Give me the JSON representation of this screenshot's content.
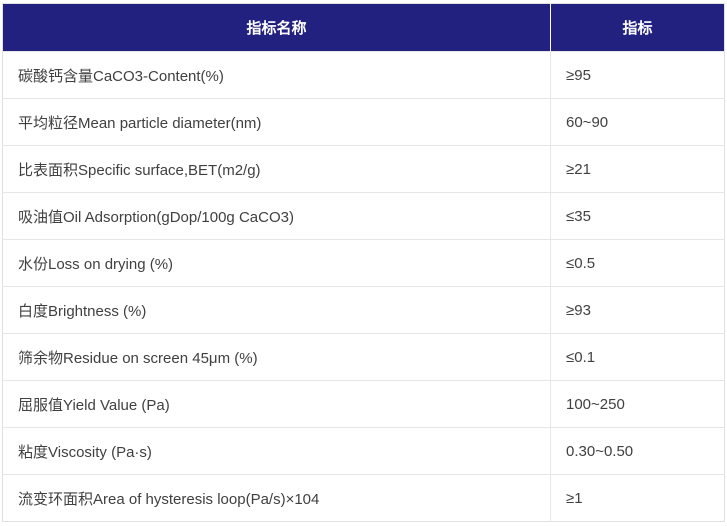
{
  "table": {
    "headers": [
      {
        "label": "指标名称"
      },
      {
        "label": "指标"
      }
    ],
    "rows": [
      {
        "name": "碳酸钙含量CaCO3-Content(%)",
        "value": "≥95"
      },
      {
        "name": "平均粒径Mean particle diameter(nm)",
        "value": "60~90"
      },
      {
        "name": "比表面积Specific surface,BET(m2/g)",
        "value": "≥21"
      },
      {
        "name": "吸油值Oil Adsorption(gDop/100g CaCO3)",
        "value": "≤35"
      },
      {
        "name": "水份Loss on drying (%)",
        "value": "≤0.5"
      },
      {
        "name": "白度Brightness (%)",
        "value": "≥93"
      },
      {
        "name": "筛余物Residue on screen 45μm (%)",
        "value": "≤0.1"
      },
      {
        "name": "屈服值Yield Value (Pa)",
        "value": "100~250"
      },
      {
        "name": "粘度Viscosity (Pa·s)",
        "value": "0.30~0.50"
      },
      {
        "name": "流变环面积Area of hysteresis loop(Pa/s)×104",
        "value": "≥1"
      }
    ],
    "colors": {
      "header_bg": "#232180",
      "header_text": "#ffffff",
      "body_text": "#404040",
      "row_border": "#e6e6e6",
      "outer_border": "#e0e0e0"
    }
  }
}
